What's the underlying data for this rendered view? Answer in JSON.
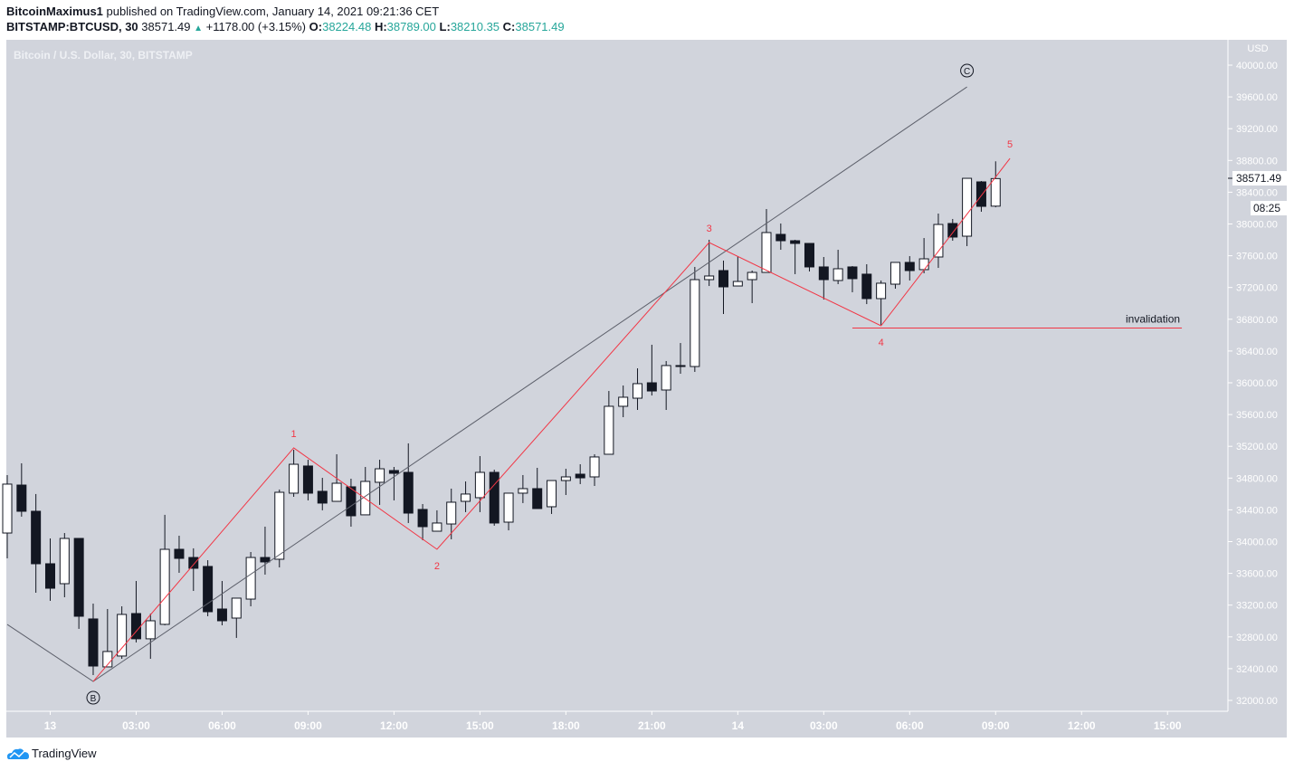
{
  "header": {
    "publisher": "BitcoinMaximus1",
    "published_text": "published on TradingView.com, January 14, 2021 09:21:36 CET",
    "symbol": "BITSTAMP:BTCUSD, 30",
    "last": "38571.49",
    "change": "+1178.00 (+3.15%)",
    "o_label": "O:",
    "o": "38224.48",
    "h_label": "H:",
    "h": "38789.00",
    "l_label": "L:",
    "l": "38210.35",
    "c_label": "C:",
    "c": "38571.49"
  },
  "footer": {
    "brand": "TradingView"
  },
  "colors": {
    "background": "#d1d4dc",
    "up_body": "#ffffff",
    "down_body": "#131722",
    "wave": "#f23645",
    "trendline": "#5d606b",
    "change_up": "#26a69a"
  },
  "chart_data": {
    "type": "candlestick",
    "title": "Bitcoin / U.S. Dollar, 30, BITSTAMP",
    "currency": "USD",
    "interval_minutes": 30,
    "first_candle_time": "2021-01-12T22:30",
    "ylim": [
      31850,
      40200
    ],
    "yticks": [
      32000,
      32400,
      32800,
      33200,
      33600,
      34000,
      34400,
      34800,
      35200,
      35600,
      36000,
      36400,
      36800,
      37200,
      37600,
      38000,
      38400,
      38800,
      39200,
      39600,
      40000
    ],
    "xticks": [
      {
        "time": "2021-01-13T00:00",
        "label": "13"
      },
      {
        "time": "2021-01-13T03:00",
        "label": "03:00"
      },
      {
        "time": "2021-01-13T06:00",
        "label": "06:00"
      },
      {
        "time": "2021-01-13T09:00",
        "label": "09:00"
      },
      {
        "time": "2021-01-13T12:00",
        "label": "12:00"
      },
      {
        "time": "2021-01-13T15:00",
        "label": "15:00"
      },
      {
        "time": "2021-01-13T18:00",
        "label": "18:00"
      },
      {
        "time": "2021-01-13T21:00",
        "label": "21:00"
      },
      {
        "time": "2021-01-14T00:00",
        "label": "14"
      },
      {
        "time": "2021-01-14T03:00",
        "label": "03:00"
      },
      {
        "time": "2021-01-14T06:00",
        "label": "06:00"
      },
      {
        "time": "2021-01-14T09:00",
        "label": "09:00"
      },
      {
        "time": "2021-01-14T12:00",
        "label": "12:00"
      },
      {
        "time": "2021-01-14T15:00",
        "label": "15:00"
      }
    ],
    "ohlc": [
      [
        34108,
        34838,
        33789,
        34724
      ],
      [
        34712,
        34986,
        34314,
        34382
      ],
      [
        34382,
        34599,
        33356,
        33721
      ],
      [
        33721,
        34040,
        33254,
        33413
      ],
      [
        33470,
        34108,
        33299,
        34040
      ],
      [
        34040,
        34040,
        32901,
        33060
      ],
      [
        33026,
        33219,
        32319,
        32433
      ],
      [
        32422,
        33151,
        32422,
        32616
      ],
      [
        32559,
        33185,
        32524,
        33083
      ],
      [
        33094,
        33504,
        32730,
        32776
      ],
      [
        32776,
        33094,
        32524,
        33003
      ],
      [
        32958,
        34337,
        32946,
        33903
      ],
      [
        33903,
        34074,
        33607,
        33789
      ],
      [
        33800,
        33915,
        33379,
        33664
      ],
      [
        33687,
        33766,
        33060,
        33117
      ],
      [
        33151,
        33504,
        32946,
        33003
      ],
      [
        33037,
        33288,
        32787,
        33288
      ],
      [
        33276,
        33869,
        33185,
        33800
      ],
      [
        33800,
        34188,
        33584,
        33744
      ],
      [
        33778,
        34656,
        33675,
        34621
      ],
      [
        34610,
        35157,
        34564,
        34974
      ],
      [
        34952,
        35031,
        34519,
        34610
      ],
      [
        34633,
        34803,
        34394,
        34485
      ],
      [
        34507,
        35100,
        34507,
        34735
      ],
      [
        34690,
        34792,
        34188,
        34325
      ],
      [
        34337,
        34940,
        34337,
        34758
      ],
      [
        34747,
        35031,
        34462,
        34917
      ],
      [
        34895,
        34940,
        34519,
        34860
      ],
      [
        34872,
        35237,
        34234,
        34359
      ],
      [
        34405,
        34473,
        34017,
        34188
      ],
      [
        34131,
        34394,
        34131,
        34234
      ],
      [
        34222,
        34667,
        34029,
        34496
      ],
      [
        34507,
        34758,
        34371,
        34599
      ],
      [
        34553,
        35077,
        34371,
        34872
      ],
      [
        34872,
        34906,
        34200,
        34234
      ],
      [
        34245,
        34610,
        34142,
        34610
      ],
      [
        34610,
        34838,
        34485,
        34667
      ],
      [
        34667,
        34929,
        34416,
        34416
      ],
      [
        34439,
        34769,
        34348,
        34769
      ],
      [
        34769,
        34917,
        34587,
        34815
      ],
      [
        34849,
        34974,
        34724,
        34803
      ],
      [
        34815,
        35100,
        34701,
        35066
      ],
      [
        35100,
        35897,
        35100,
        35704
      ],
      [
        35704,
        35966,
        35567,
        35818
      ],
      [
        35806,
        36182,
        35658,
        35989
      ],
      [
        36000,
        36479,
        35840,
        35897
      ],
      [
        35909,
        36274,
        35658,
        36217
      ],
      [
        36217,
        36501,
        36114,
        36205
      ],
      [
        36205,
        37459,
        36137,
        37299
      ],
      [
        37299,
        37801,
        37219,
        37345
      ],
      [
        37413,
        37539,
        36866,
        37208
      ],
      [
        37219,
        37595,
        37219,
        37276
      ],
      [
        37299,
        37413,
        37003,
        37390
      ],
      [
        37390,
        38188,
        37390,
        37892
      ],
      [
        37869,
        38006,
        37675,
        37789
      ],
      [
        37789,
        37801,
        37368,
        37755
      ],
      [
        37755,
        37755,
        37402,
        37459
      ],
      [
        37459,
        37584,
        37048,
        37299
      ],
      [
        37288,
        37675,
        37242,
        37436
      ],
      [
        37459,
        37470,
        37140,
        37311
      ],
      [
        37368,
        37493,
        36991,
        37060
      ],
      [
        37060,
        37288,
        36729,
        37254
      ],
      [
        37242,
        37516,
        37185,
        37516
      ],
      [
        37516,
        37595,
        37288,
        37413
      ],
      [
        37425,
        37823,
        37379,
        37561
      ],
      [
        37584,
        38131,
        37447,
        37994
      ],
      [
        38006,
        38063,
        37789,
        37835
      ],
      [
        37846,
        38575,
        37721,
        38575
      ],
      [
        38530,
        38541,
        38154,
        38222
      ],
      [
        38224.48,
        38789,
        38210.35,
        38571.49
      ]
    ],
    "last_price_label": "38571.49",
    "countdown": "08:25",
    "annotations": {
      "trendline": [
        {
          "time": "2021-01-12T22:30",
          "price": 32957
        },
        {
          "time": "2021-01-13T01:30",
          "price": 32239
        },
        {
          "time": "2021-01-14T08:00",
          "price": 39726
        }
      ],
      "wave_lines": [
        {
          "time": "2021-01-13T01:30",
          "price": 32239
        },
        {
          "time": "2021-01-13T08:30",
          "price": 35180
        },
        {
          "time": "2021-01-13T13:30",
          "price": 33903
        },
        {
          "time": "2021-01-13T23:00",
          "price": 37766
        },
        {
          "time": "2021-01-14T05:00",
          "price": 36718
        },
        {
          "time": "2021-01-14T09:30",
          "price": 38826
        }
      ],
      "wave_labels": [
        {
          "text": "1",
          "time": "2021-01-13T08:30",
          "price": 35180,
          "pos": "above"
        },
        {
          "text": "2",
          "time": "2021-01-13T13:30",
          "price": 33903,
          "pos": "below"
        },
        {
          "text": "3",
          "time": "2021-01-13T23:00",
          "price": 37766,
          "pos": "above"
        },
        {
          "text": "4",
          "time": "2021-01-14T05:00",
          "price": 36718,
          "pos": "below"
        },
        {
          "text": "5",
          "time": "2021-01-14T09:30",
          "price": 38826,
          "pos": "above"
        }
      ],
      "circled_labels": [
        {
          "text": "B",
          "time": "2021-01-13T01:30",
          "price": 32239,
          "pos": "below"
        },
        {
          "text": "C",
          "time": "2021-01-14T08:00",
          "price": 39726,
          "pos": "above"
        }
      ],
      "invalidation": {
        "text": "invalidation",
        "price": 36690,
        "from": "2021-01-14T04:00",
        "to": "2021-01-14T15:30"
      }
    }
  }
}
